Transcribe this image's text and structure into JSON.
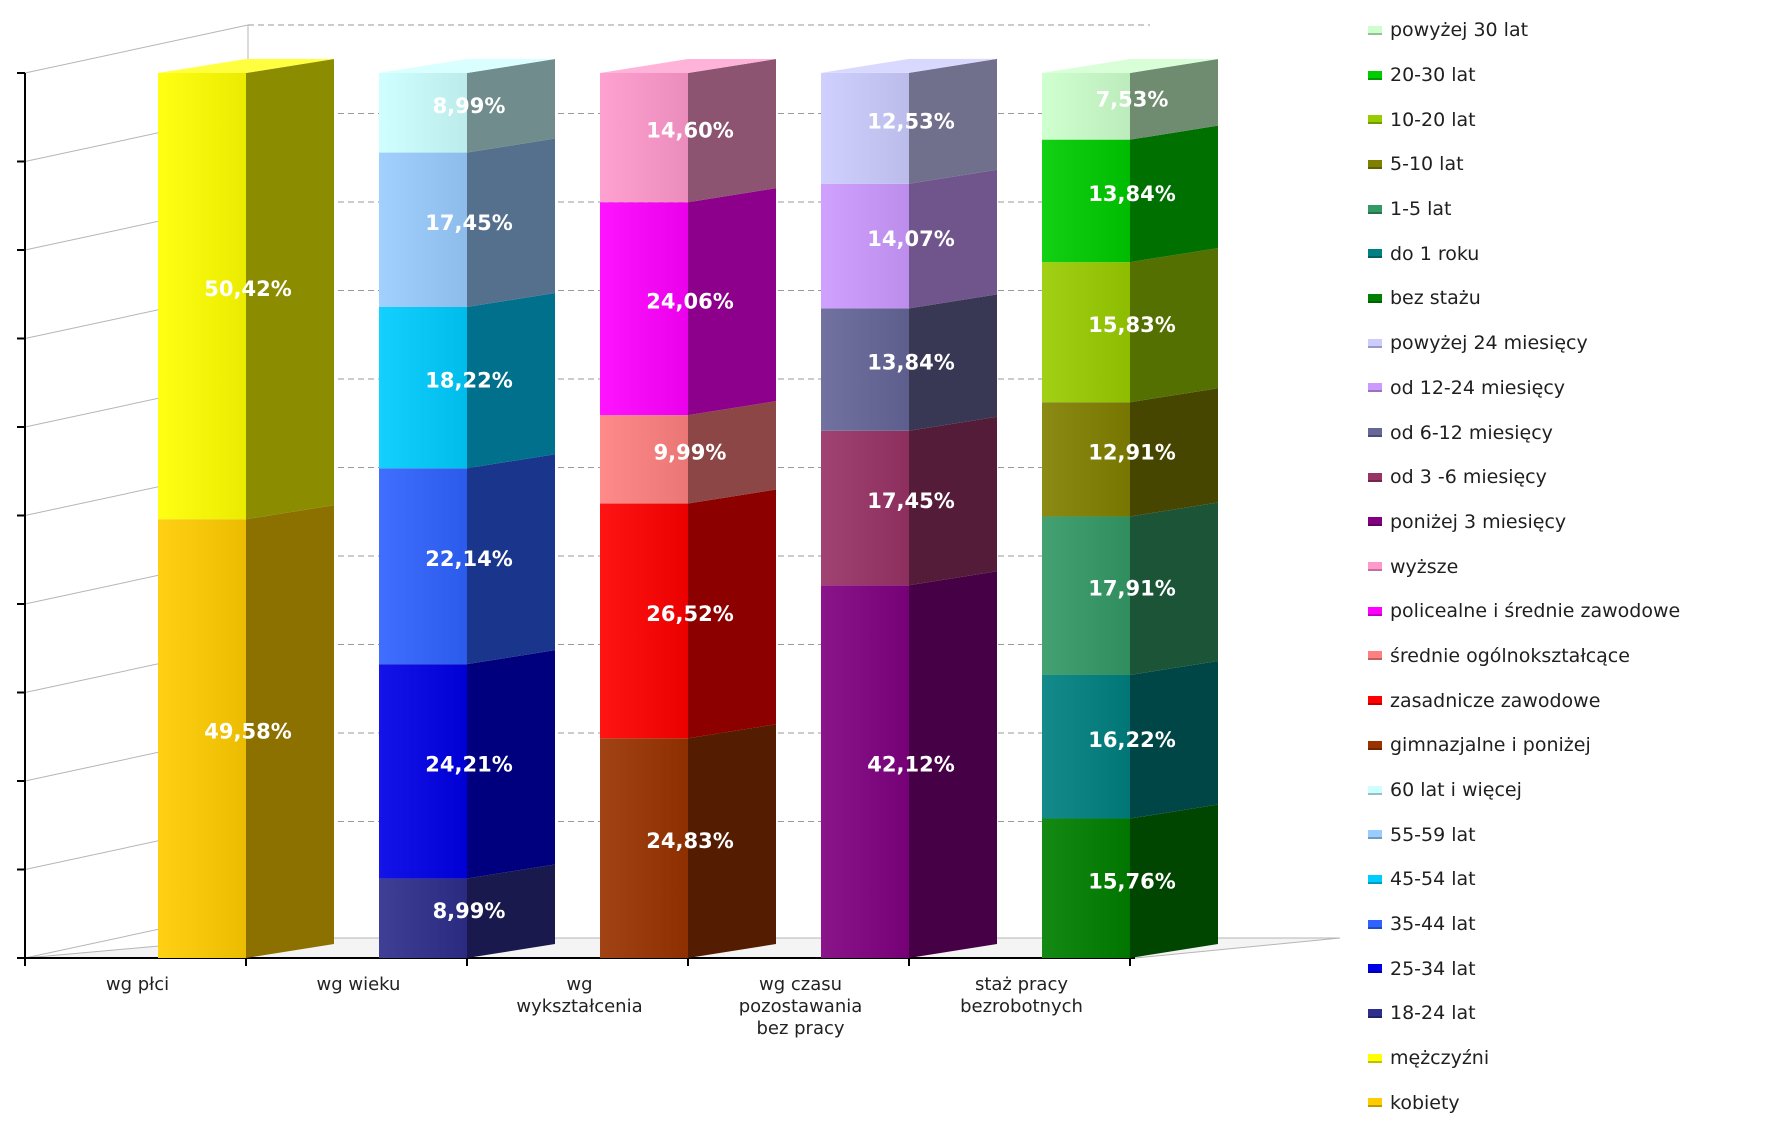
{
  "chart_data": {
    "type": "bar",
    "stacked": true,
    "three_d": true,
    "percent_stacked": true,
    "ylim": [
      0,
      100
    ],
    "grid": true,
    "legend_position": "right",
    "categories": [
      "wg płci",
      "wg wieku",
      "wg wykształcenia",
      "wg czasu pozostawania bez pracy",
      "staż pracy bezrobotnych"
    ],
    "category_label_lines": [
      [
        "wg płci"
      ],
      [
        "wg wieku"
      ],
      [
        "wg",
        "wykształcenia"
      ],
      [
        "wg czasu",
        "pozostawania",
        "bez pracy"
      ],
      [
        "staż pracy",
        "bezrobotnych"
      ]
    ],
    "stacks": [
      [
        {
          "name": "kobiety",
          "value": 49.58,
          "label": "49,58%",
          "color": "#FFCC00"
        },
        {
          "name": "mężczyźni",
          "value": 50.42,
          "label": "50,42%",
          "color": "#FFFF00"
        }
      ],
      [
        {
          "name": "18-24 lat",
          "value": 8.99,
          "label": "8,99%",
          "color": "#2E2E8C"
        },
        {
          "name": "25-34 lat",
          "value": 24.21,
          "label": "24,21%",
          "color": "#0000E6"
        },
        {
          "name": "35-44 lat",
          "value": 22.14,
          "label": "22,14%",
          "color": "#2F63FF"
        },
        {
          "name": "45-54 lat",
          "value": 18.22,
          "label": "18,22%",
          "color": "#00CCFF"
        },
        {
          "name": "55-59 lat",
          "value": 17.45,
          "label": "17,45%",
          "color": "#99CCFF"
        },
        {
          "name": "60 lat i więcej",
          "value": 8.99,
          "label": "8,99%",
          "color": "#CCFFFF"
        }
      ],
      [
        {
          "name": "gimnazjalne i poniżej",
          "value": 24.83,
          "label": "24,83%",
          "color": "#993300"
        },
        {
          "name": "zasadnicze zawodowe",
          "value": 26.52,
          "label": "26,52%",
          "color": "#FF0000"
        },
        {
          "name": "średnie ogólnokształcące",
          "value": 9.99,
          "label": "9,99%",
          "color": "#FF8080"
        },
        {
          "name": "policealne i średnie zawodowe",
          "value": 24.06,
          "label": "24,06%",
          "color": "#FF00FF"
        },
        {
          "name": "wyższe",
          "value": 14.6,
          "label": "14,60%",
          "color": "#FF99CC"
        }
      ],
      [
        {
          "name": "poniżej 3 miesięcy",
          "value": 42.12,
          "label": "42,12%",
          "color": "#800080"
        },
        {
          "name": "od 3 -6 miesięcy",
          "value": 17.45,
          "label": "17,45%",
          "color": "#993366"
        },
        {
          "name": "od 6-12 miesięcy",
          "value": 13.84,
          "label": "13,84%",
          "color": "#666699"
        },
        {
          "name": "od 12-24 miesięcy",
          "value": 14.07,
          "label": "14,07%",
          "color": "#CC99FF"
        },
        {
          "name": "powyżej 24 miesięcy",
          "value": 12.53,
          "label": "12,53%",
          "color": "#CCCCFF"
        }
      ],
      [
        {
          "name": "bez stażu",
          "value": 15.76,
          "label": "15,76%",
          "color": "#008000"
        },
        {
          "name": "do 1 roku",
          "value": 16.22,
          "label": "16,22%",
          "color": "#008080"
        },
        {
          "name": "1-5 lat",
          "value": 17.91,
          "label": "17,91%",
          "color": "#339966"
        },
        {
          "name": "5-10 lat",
          "value": 12.91,
          "label": "12,91%",
          "color": "#808000"
        },
        {
          "name": "10-20 lat",
          "value": 15.83,
          "label": "15,83%",
          "color": "#99CC00"
        },
        {
          "name": "20-30 lat",
          "value": 13.84,
          "label": "13,84%",
          "color": "#00CC00"
        },
        {
          "name": "powyżej 30 lat",
          "value": 7.53,
          "label": "7,53%",
          "color": "#CCFFCC"
        }
      ]
    ]
  },
  "legend": [
    {
      "label": "powyżej 30 lat",
      "color": "#CCFFCC"
    },
    {
      "label": "20-30 lat",
      "color": "#00CC00"
    },
    {
      "label": "10-20 lat",
      "color": "#99CC00"
    },
    {
      "label": "5-10 lat",
      "color": "#808000"
    },
    {
      "label": "1-5 lat",
      "color": "#339966"
    },
    {
      "label": "do 1 roku",
      "color": "#008080"
    },
    {
      "label": "bez stażu",
      "color": "#008000"
    },
    {
      "label": "powyżej 24 miesięcy",
      "color": "#CCCCFF"
    },
    {
      "label": "od 12-24 miesięcy",
      "color": "#CC99FF"
    },
    {
      "label": "od 6-12 miesięcy",
      "color": "#666699"
    },
    {
      "label": "od 3 -6 miesięcy",
      "color": "#993366"
    },
    {
      "label": "poniżej 3 miesięcy",
      "color": "#800080"
    },
    {
      "label": "wyższe",
      "color": "#FF99CC"
    },
    {
      "label": "policealne i średnie zawodowe",
      "color": "#FF00FF"
    },
    {
      "label": "średnie ogólnokształcące",
      "color": "#FF8080"
    },
    {
      "label": "zasadnicze zawodowe",
      "color": "#FF0000"
    },
    {
      "label": "gimnazjalne i poniżej",
      "color": "#993300"
    },
    {
      "label": "60 lat i więcej",
      "color": "#CCFFFF"
    },
    {
      "label": "55-59 lat",
      "color": "#99CCFF"
    },
    {
      "label": "45-54 lat",
      "color": "#00CCFF"
    },
    {
      "label": "35-44 lat",
      "color": "#2F63FF"
    },
    {
      "label": "25-34 lat",
      "color": "#0000E6"
    },
    {
      "label": "18-24 lat",
      "color": "#2E2E8C"
    },
    {
      "label": "mężczyźni",
      "color": "#FFFF00"
    },
    {
      "label": "kobiety",
      "color": "#FFCC00"
    }
  ]
}
